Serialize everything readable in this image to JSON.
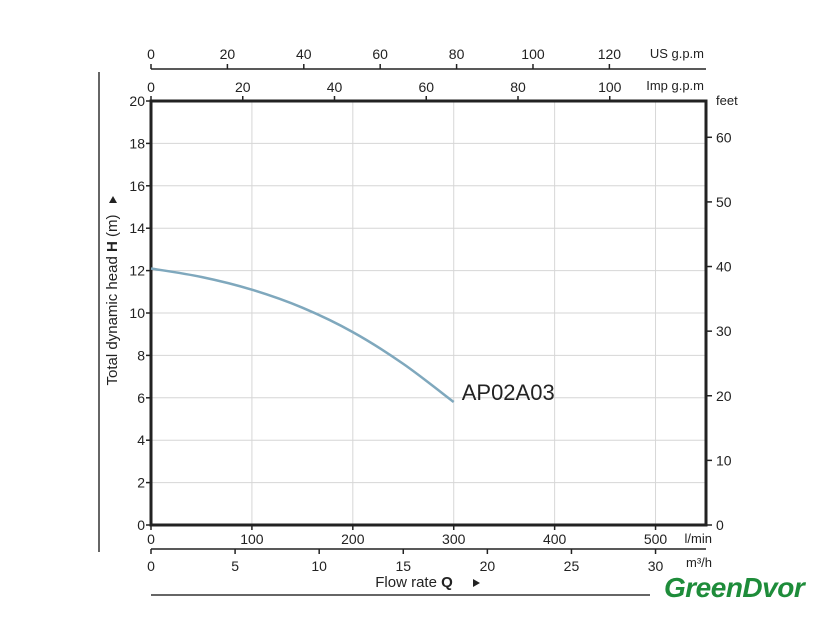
{
  "chart_data": {
    "type": "line",
    "y_axis": {
      "label_prefix": "Total dynamic head ",
      "label_bold": "H",
      "label_suffix": " (m)",
      "ylim": [
        0,
        20
      ],
      "ticks": [
        0,
        2,
        4,
        6,
        8,
        10,
        12,
        14,
        16,
        18,
        20
      ]
    },
    "y2_axis": {
      "unit": "feet",
      "ticks": [
        0,
        10,
        20,
        30,
        40,
        50,
        60
      ],
      "per_primary_unit": 3.28084
    },
    "x_axis": {
      "label_prefix": "Flow rate ",
      "label_bold": "Q",
      "unit": "l/min",
      "xlim": [
        0,
        550
      ],
      "ticks": [
        0,
        100,
        200,
        300,
        400,
        500
      ]
    },
    "x2_axis": {
      "unit": "m³/h",
      "ticks": [
        0,
        5,
        10,
        15,
        20,
        25,
        30
      ],
      "per_primary_unit": 0.06
    },
    "top_axis_us": {
      "unit": "US g.p.m",
      "ticks": [
        0,
        20,
        40,
        60,
        80,
        100,
        120
      ],
      "per_primary_unit": 0.264172
    },
    "top_axis_imp": {
      "unit": "Imp g.p.m",
      "ticks": [
        0,
        20,
        40,
        60,
        80,
        100
      ],
      "per_primary_unit": 0.219969
    },
    "grid": true,
    "series": [
      {
        "name": "AP02A03",
        "color": "#7fa8bd",
        "x": [
          0,
          50,
          100,
          150,
          200,
          250,
          300
        ],
        "y": [
          12.1,
          11.7,
          11.1,
          10.25,
          9.1,
          7.6,
          5.8
        ]
      }
    ]
  },
  "brand": {
    "logo_text": "GreenDvor",
    "color": "#1e8c3a"
  }
}
